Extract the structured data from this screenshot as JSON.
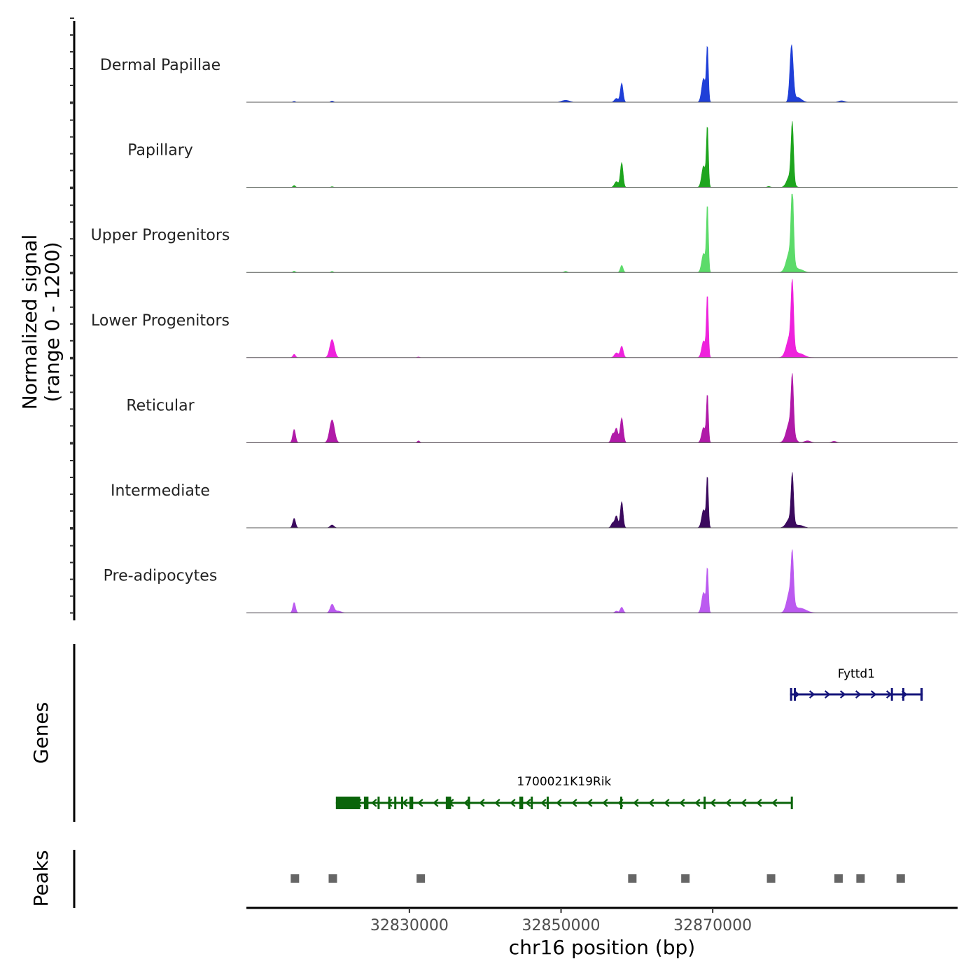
{
  "chart_data": {
    "type": "genome-coverage",
    "chromosome": "chr16",
    "xlim": [
      32808500,
      32902300
    ],
    "xticks": [
      32830000,
      32850000,
      32870000
    ],
    "xtick_labels": [
      "32830000",
      "32850000",
      "32870000"
    ],
    "xlabel": "chr16 position (bp)",
    "ylabel_line1": "Normalized signal",
    "ylabel_line2": "(range 0 - 1200)",
    "ylim": [
      0,
      1200
    ],
    "genes_label": "Genes",
    "peaks_label": "Peaks",
    "tracks": [
      {
        "name": "Dermal Papillae",
        "color": "#1f3fd8",
        "peaks": [
          {
            "x": 32814800,
            "h": 20,
            "w": 150
          },
          {
            "x": 32819800,
            "h": 25,
            "w": 180
          },
          {
            "x": 32850600,
            "h": 40,
            "w": 500
          },
          {
            "x": 32857300,
            "h": 80,
            "w": 250
          },
          {
            "x": 32858000,
            "h": 400,
            "w": 180
          },
          {
            "x": 32868800,
            "h": 500,
            "w": 250
          },
          {
            "x": 32869300,
            "h": 1150,
            "w": 130
          },
          {
            "x": 32880400,
            "h": 1180,
            "w": 220
          },
          {
            "x": 32881200,
            "h": 100,
            "w": 500
          },
          {
            "x": 32887000,
            "h": 30,
            "w": 400
          }
        ]
      },
      {
        "name": "Papillary",
        "color": "#1ea51e",
        "peaks": [
          {
            "x": 32814800,
            "h": 40,
            "w": 150
          },
          {
            "x": 32819800,
            "h": 15,
            "w": 150
          },
          {
            "x": 32857300,
            "h": 120,
            "w": 250
          },
          {
            "x": 32858000,
            "h": 520,
            "w": 180
          },
          {
            "x": 32868800,
            "h": 450,
            "w": 250
          },
          {
            "x": 32869300,
            "h": 1260,
            "w": 130
          },
          {
            "x": 32877400,
            "h": 20,
            "w": 200
          },
          {
            "x": 32880200,
            "h": 250,
            "w": 400
          },
          {
            "x": 32880500,
            "h": 1200,
            "w": 160
          }
        ]
      },
      {
        "name": "Upper Progenitors",
        "color": "#5cdb6a",
        "peaks": [
          {
            "x": 32814800,
            "h": 30,
            "w": 150
          },
          {
            "x": 32819800,
            "h": 25,
            "w": 150
          },
          {
            "x": 32850600,
            "h": 25,
            "w": 200
          },
          {
            "x": 32858000,
            "h": 150,
            "w": 180
          },
          {
            "x": 32868800,
            "h": 400,
            "w": 250
          },
          {
            "x": 32869300,
            "h": 1400,
            "w": 130
          },
          {
            "x": 32880200,
            "h": 450,
            "w": 450
          },
          {
            "x": 32880500,
            "h": 1500,
            "w": 160
          },
          {
            "x": 32881500,
            "h": 60,
            "w": 500
          }
        ]
      },
      {
        "name": "Lower Progenitors",
        "color": "#ee22dc",
        "peaks": [
          {
            "x": 32814800,
            "h": 70,
            "w": 170
          },
          {
            "x": 32819800,
            "h": 380,
            "w": 300
          },
          {
            "x": 32831200,
            "h": 15,
            "w": 150
          },
          {
            "x": 32857300,
            "h": 100,
            "w": 250
          },
          {
            "x": 32858000,
            "h": 240,
            "w": 200
          },
          {
            "x": 32868800,
            "h": 350,
            "w": 250
          },
          {
            "x": 32869300,
            "h": 1300,
            "w": 130
          },
          {
            "x": 32880200,
            "h": 450,
            "w": 450
          },
          {
            "x": 32880500,
            "h": 1300,
            "w": 160
          },
          {
            "x": 32881500,
            "h": 80,
            "w": 600
          }
        ]
      },
      {
        "name": "Reticular",
        "color": "#b01aa8",
        "peaks": [
          {
            "x": 32814800,
            "h": 280,
            "w": 180
          },
          {
            "x": 32819800,
            "h": 480,
            "w": 320
          },
          {
            "x": 32831200,
            "h": 40,
            "w": 150
          },
          {
            "x": 32856800,
            "h": 180,
            "w": 200
          },
          {
            "x": 32857300,
            "h": 300,
            "w": 200
          },
          {
            "x": 32858000,
            "h": 520,
            "w": 200
          },
          {
            "x": 32868800,
            "h": 320,
            "w": 250
          },
          {
            "x": 32869300,
            "h": 1000,
            "w": 130
          },
          {
            "x": 32880200,
            "h": 450,
            "w": 450
          },
          {
            "x": 32880500,
            "h": 1100,
            "w": 160
          },
          {
            "x": 32882500,
            "h": 40,
            "w": 400
          },
          {
            "x": 32886000,
            "h": 30,
            "w": 300
          }
        ]
      },
      {
        "name": "Intermediate",
        "color": "#3b0a5e",
        "peaks": [
          {
            "x": 32814800,
            "h": 200,
            "w": 180
          },
          {
            "x": 32819800,
            "h": 60,
            "w": 250
          },
          {
            "x": 32856800,
            "h": 100,
            "w": 200
          },
          {
            "x": 32857300,
            "h": 250,
            "w": 200
          },
          {
            "x": 32858000,
            "h": 550,
            "w": 180
          },
          {
            "x": 32868800,
            "h": 380,
            "w": 250
          },
          {
            "x": 32869300,
            "h": 1060,
            "w": 130
          },
          {
            "x": 32880200,
            "h": 200,
            "w": 450
          },
          {
            "x": 32880500,
            "h": 1000,
            "w": 160
          },
          {
            "x": 32881500,
            "h": 50,
            "w": 500
          }
        ]
      },
      {
        "name": "Pre-adipocytes",
        "color": "#bb5af0",
        "peaks": [
          {
            "x": 32814800,
            "h": 220,
            "w": 180
          },
          {
            "x": 32819800,
            "h": 180,
            "w": 250
          },
          {
            "x": 32820600,
            "h": 40,
            "w": 400
          },
          {
            "x": 32857300,
            "h": 40,
            "w": 200
          },
          {
            "x": 32858000,
            "h": 120,
            "w": 200
          },
          {
            "x": 32868800,
            "h": 430,
            "w": 250
          },
          {
            "x": 32869300,
            "h": 920,
            "w": 130
          },
          {
            "x": 32880200,
            "h": 450,
            "w": 400
          },
          {
            "x": 32880500,
            "h": 950,
            "w": 160
          },
          {
            "x": 32881500,
            "h": 100,
            "w": 800
          }
        ]
      }
    ],
    "genes": [
      {
        "name": "Fyttd1",
        "strand": "+",
        "start": 32880200,
        "end": 32897700,
        "color": "#14147a",
        "exons": [
          [
            32880200,
            32880400
          ],
          [
            32880700,
            32880800
          ],
          [
            32893500,
            32893600
          ],
          [
            32895000,
            32895100
          ],
          [
            32897400,
            32897700
          ]
        ]
      },
      {
        "name": "1700021K19Rik",
        "strand": "-",
        "start": 32820300,
        "end": 32880500,
        "color": "#0a640a",
        "exons": [
          [
            32820300,
            32823500
          ],
          [
            32824000,
            32824600
          ],
          [
            32825800,
            32826000
          ],
          [
            32827200,
            32827300
          ],
          [
            32828000,
            32828200
          ],
          [
            32828900,
            32829100
          ],
          [
            32830000,
            32830500
          ],
          [
            32834800,
            32835500
          ],
          [
            32837700,
            32838000
          ],
          [
            32844500,
            32845000
          ],
          [
            32846000,
            32846200
          ],
          [
            32848100,
            32848300
          ],
          [
            32857800,
            32858000
          ],
          [
            32868800,
            32869000
          ],
          [
            32880300,
            32880500
          ]
        ]
      }
    ],
    "peak_regions": [
      32814900,
      32819900,
      32831500,
      32859400,
      32866400,
      32877700,
      32886600,
      32889500,
      32894800
    ]
  }
}
